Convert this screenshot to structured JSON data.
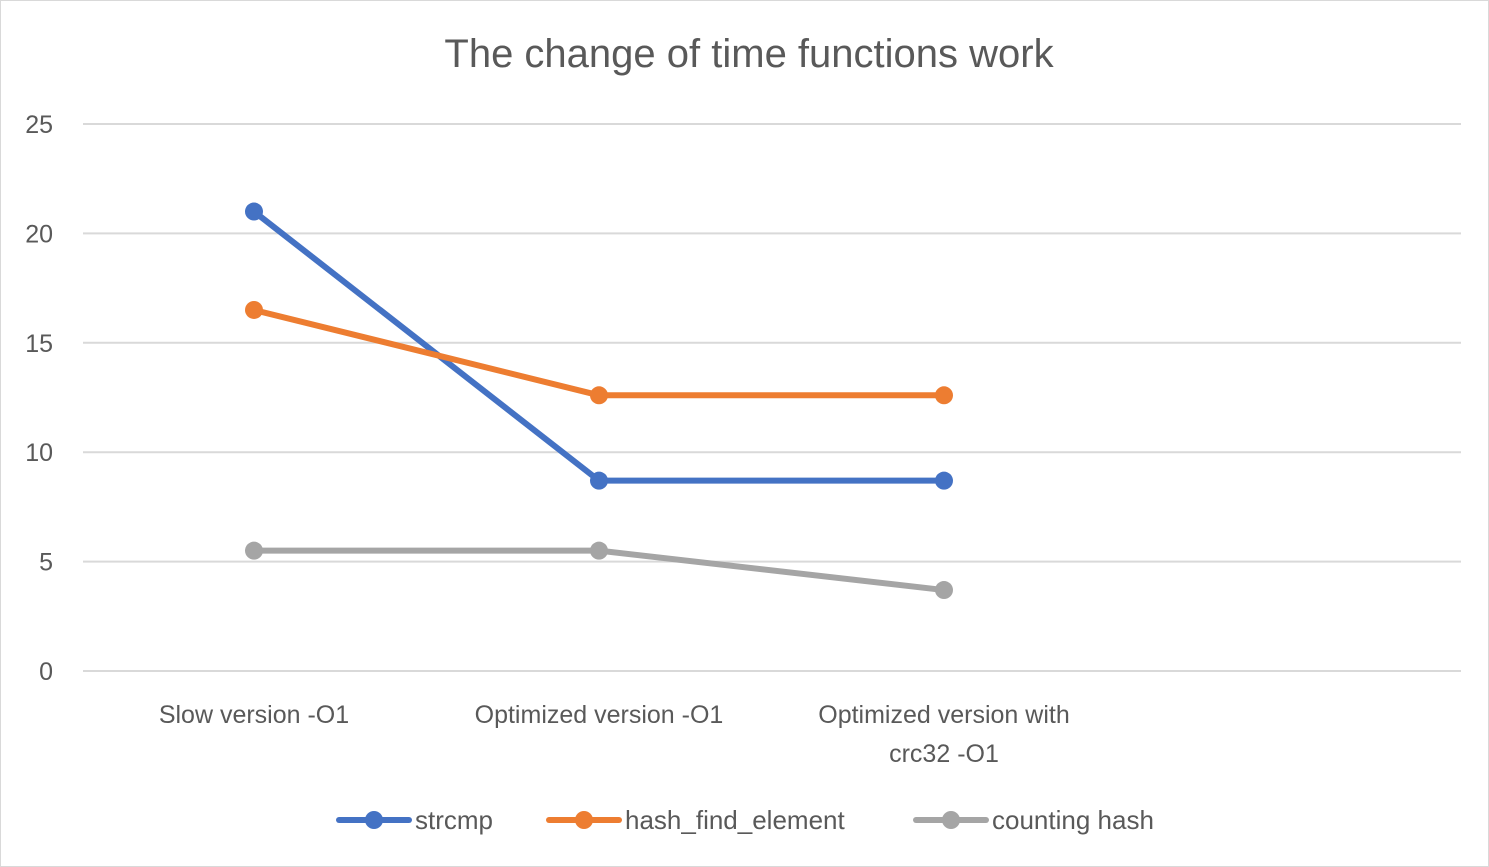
{
  "chart_data": {
    "type": "line",
    "title": "The change of time functions work",
    "xlabel": "",
    "ylabel": "",
    "ylim": [
      0,
      25
    ],
    "yticks": [
      "0",
      "5",
      "10",
      "15",
      "20",
      "25"
    ],
    "grid": true,
    "legend_position": "bottom",
    "categories": [
      [
        "Slow version -O1"
      ],
      [
        "Optimized version -O1"
      ],
      [
        "Optimized version with",
        "crc32 -O1"
      ]
    ],
    "series": [
      {
        "name": "strcmp",
        "color": "#4472c4",
        "values": [
          21.0,
          8.7,
          8.7
        ]
      },
      {
        "name": "hash_find_element",
        "color": "#ed7d31",
        "values": [
          16.5,
          12.6,
          12.6
        ]
      },
      {
        "name": "counting hash",
        "color": "#a5a5a5",
        "values": [
          5.5,
          5.5,
          3.7
        ]
      }
    ]
  }
}
